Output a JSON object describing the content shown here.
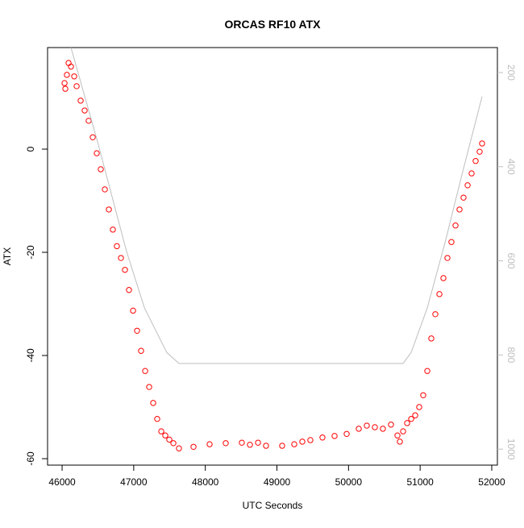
{
  "chart_data": {
    "type": "scatter",
    "title": "ORCAS RF10 ATX",
    "x_label": "UTC Seconds",
    "y_label": "ATX",
    "xlim": [
      45797,
      52079
    ],
    "xticks": [
      46000,
      47000,
      48000,
      49000,
      50000,
      51000,
      52000
    ],
    "ylim": [
      -61.25,
      19.69
    ],
    "yticks": [
      -60,
      -40,
      -20,
      0
    ],
    "y2lim": [
      1034,
      147
    ],
    "y2ticks": [
      200,
      400,
      600,
      800,
      1000
    ],
    "series": [
      {
        "type": "scatter",
        "color": "#ff0000",
        "x": [
          46034,
          46045,
          46067,
          46090,
          46124,
          46169,
          46203,
          46259,
          46315,
          46371,
          46428,
          46484,
          46540,
          46597,
          46653,
          46709,
          46765,
          46822,
          46878,
          46934,
          46991,
          47047,
          47103,
          47160,
          47216,
          47272,
          47328,
          47385,
          47441,
          47497,
          47554,
          47632,
          47835,
          48060,
          48285,
          48510,
          48623,
          48736,
          48848,
          49073,
          49242,
          49355,
          49467,
          49636,
          49805,
          49974,
          50143,
          50255,
          50368,
          50480,
          50593,
          50683,
          50717,
          50762,
          50818,
          50875,
          50931,
          50987,
          51043,
          51100,
          51156,
          51212,
          51269,
          51325,
          51381,
          51437,
          51494,
          51550,
          51606,
          51663,
          51719,
          51775,
          51831,
          51865
        ],
        "values": [
          12.8,
          11.7,
          14.4,
          16.7,
          16,
          14.1,
          12.2,
          9.4,
          7.5,
          5.5,
          2.3,
          -0.8,
          -3.9,
          -7.8,
          -11.7,
          -15.6,
          -18.8,
          -21.1,
          -23.4,
          -27.3,
          -31.3,
          -35.2,
          -39.1,
          -43,
          -46.1,
          -49.2,
          -52.3,
          -54.7,
          -55.5,
          -56.3,
          -57,
          -58,
          -57.7,
          -57.2,
          -57,
          -56.9,
          -57.3,
          -56.9,
          -57.5,
          -57.5,
          -57.2,
          -56.7,
          -56.4,
          -55.9,
          -55.6,
          -55.2,
          -54.2,
          -53.6,
          -53.9,
          -54.2,
          -53.4,
          -55.5,
          -56.7,
          -54.7,
          -53.1,
          -52.3,
          -51.6,
          -50,
          -47.7,
          -43,
          -36.7,
          -32,
          -28.1,
          -25,
          -21.1,
          -18,
          -14.8,
          -11.7,
          -9.4,
          -7,
          -4.7,
          -2.3,
          -0.5,
          1.1
        ]
      },
      {
        "type": "line",
        "axis": "y2",
        "color": "#bebebe",
        "x": [
          46124,
          46500,
          46900,
          47150,
          47463,
          47632,
          50762,
          50874,
          51100,
          51350,
          51572,
          51865
        ],
        "values": [
          147,
          350,
          580,
          700,
          795,
          818,
          818,
          795,
          700,
          560,
          424,
          251
        ]
      }
    ]
  }
}
